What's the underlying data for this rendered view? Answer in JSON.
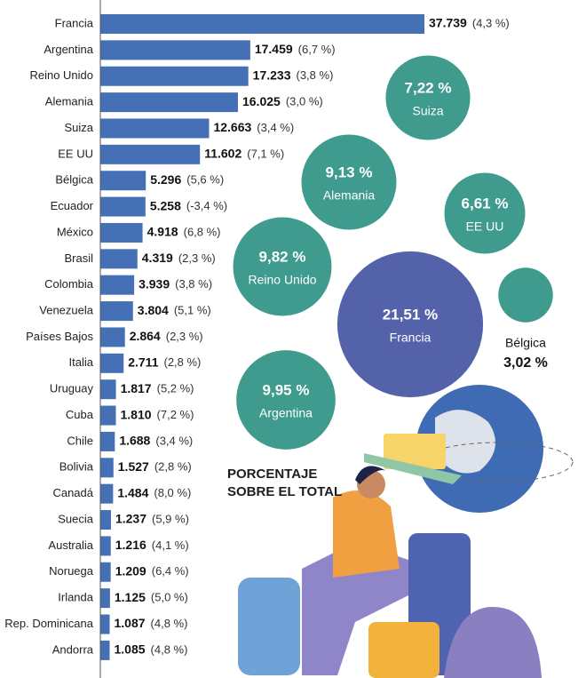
{
  "chart_data": [
    {
      "type": "bar",
      "orientation": "horizontal",
      "color": "#4670b5",
      "categories": [
        "Francia",
        "Argentina",
        "Reino Unido",
        "Alemania",
        "Suiza",
        "EE UU",
        "Bélgica",
        "Ecuador",
        "México",
        "Brasil",
        "Colombia",
        "Venezuela",
        "Países Bajos",
        "Italia",
        "Uruguay",
        "Cuba",
        "Chile",
        "Bolivia",
        "Canadá",
        "Suecia",
        "Australia",
        "Noruega",
        "Irlanda",
        "Rep. Dominicana",
        "Andorra"
      ],
      "values": [
        37739,
        17459,
        17233,
        16025,
        12663,
        11602,
        5296,
        5258,
        4918,
        4319,
        3939,
        3804,
        2864,
        2711,
        1817,
        1810,
        1688,
        1527,
        1484,
        1237,
        1216,
        1209,
        1125,
        1087,
        1085
      ],
      "value_labels": [
        "37.739",
        "17.459",
        "17.233",
        "16.025",
        "12.663",
        "11.602",
        "5.296",
        "5.258",
        "4.918",
        "4.319",
        "3.939",
        "3.804",
        "2.864",
        "2.711",
        "1.817",
        "1.810",
        "1.688",
        "1.527",
        "1.484",
        "1.237",
        "1.216",
        "1.209",
        "1.125",
        "1.087",
        "1.085"
      ],
      "change_labels": [
        "(4,3 %)",
        "(6,7 %)",
        "(3,8 %)",
        "(3,0 %)",
        "(3,4 %)",
        "(7,1 %)",
        "(5,6 %)",
        "(-3,4 %)",
        "(6,8 %)",
        "(2,3 %)",
        "(3,8 %)",
        "(5,1 %)",
        "(2,3 %)",
        "(2,8 %)",
        "(5,2 %)",
        "(7,2 %)",
        "(3,4 %)",
        "(2,8 %)",
        "(8,0 %)",
        "(5,9 %)",
        "(4,1 %)",
        "(6,4 %)",
        "(5,0 %)",
        "(4,8 %)",
        "(4,8 %)"
      ],
      "xlim": [
        0,
        37739
      ]
    },
    {
      "type": "bubble",
      "title": "PORCENTAJE SOBRE EL TOTAL",
      "categories": [
        "Suiza",
        "Alemania",
        "EE UU",
        "Reino Unido",
        "Francia",
        "Bélgica",
        "Argentina"
      ],
      "values": [
        7.22,
        9.13,
        6.61,
        9.82,
        21.51,
        3.02,
        9.95
      ],
      "value_labels": [
        "7,22 %",
        "9,13 %",
        "6,61 %",
        "9,82 %",
        "21,51 %",
        "3,02 %",
        "9,95 %"
      ],
      "colors": [
        "#3f9b8e",
        "#3f9b8e",
        "#3f9b8e",
        "#3f9b8e",
        "#5462aa",
        "#3f9b8e",
        "#3f9b8e"
      ]
    }
  ]
}
